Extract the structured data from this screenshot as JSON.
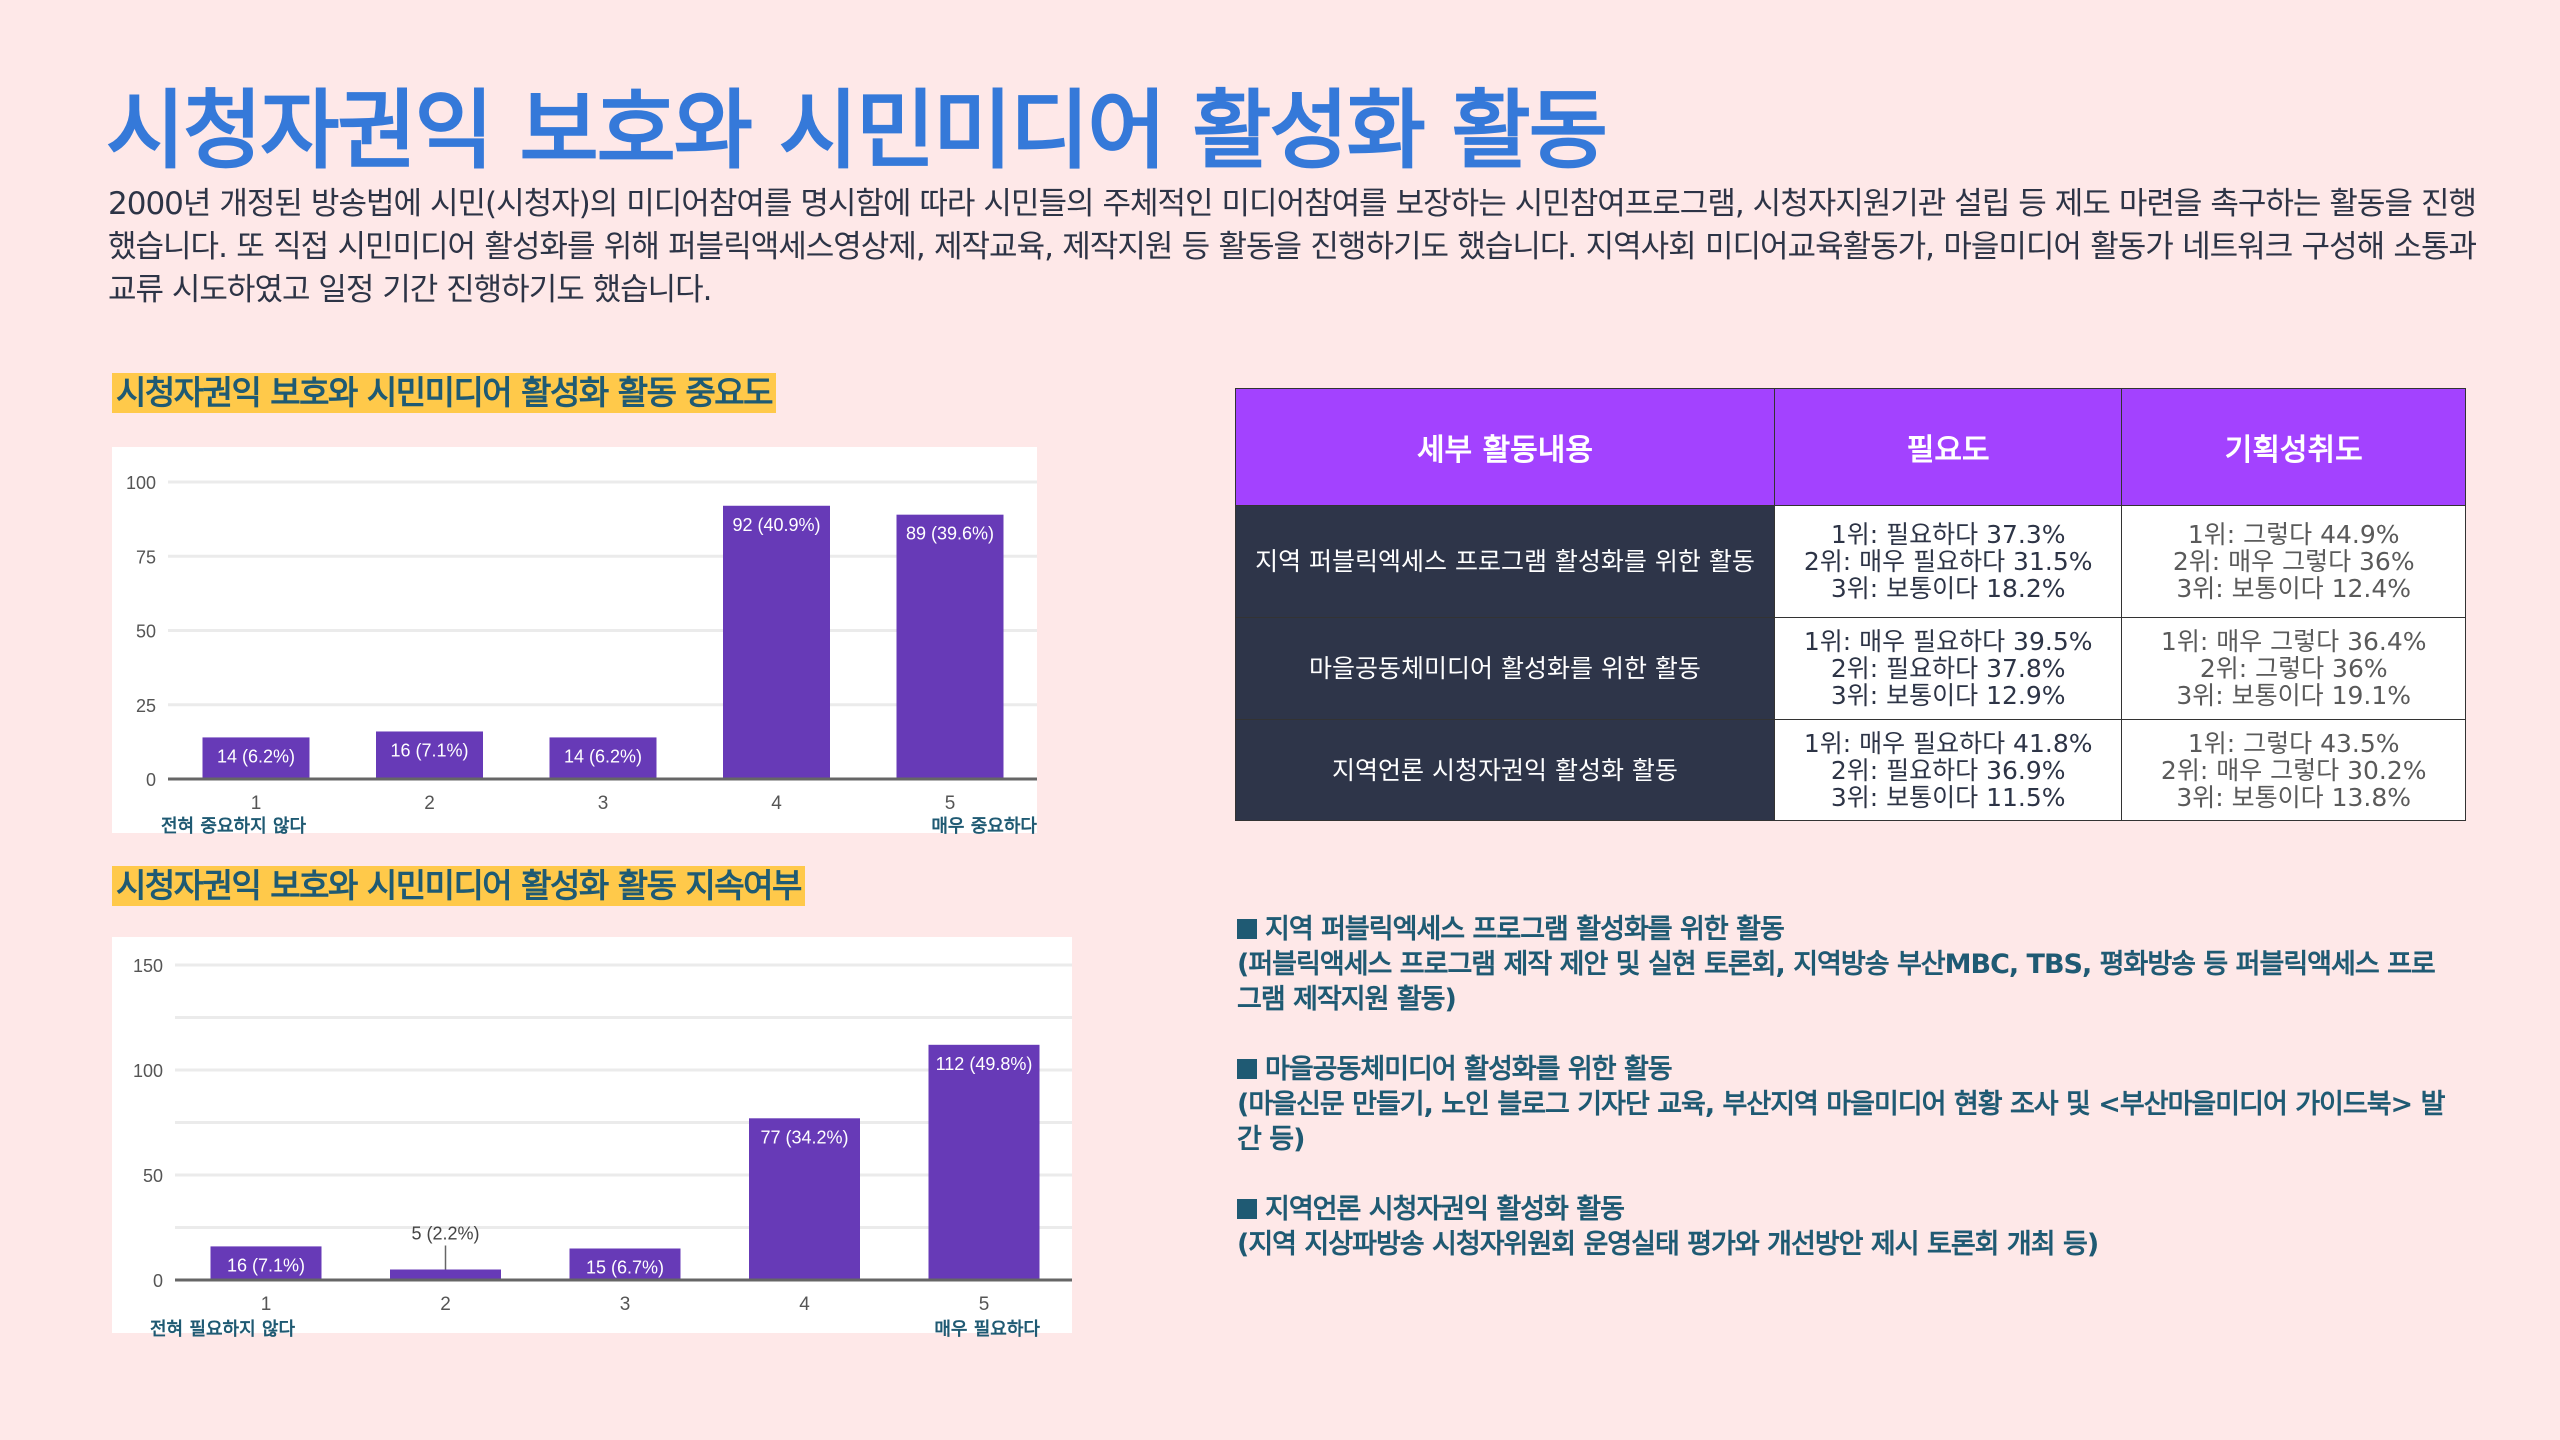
{
  "page": {
    "title": "시청자권익 보호와 시민미디어 활성화 활동",
    "intro": "2000년 개정된 방송법에 시민(시청자)의 미디어참여를 명시함에 따라 시민들의 주체적인 미디어참여를 보장하는 시민참여프로그램, 시청자지원기관 설립 등 제도 마련을 촉구하는 활동을 진행했습니다. 또 직접 시민미디어 활성화를 위해 퍼블릭액세스영상제, 제작교육, 제작지원 등 활동을 진행하기도 했습니다. 지역사회 미디어교육활동가, 마을미디어 활동가 네트워크 구성해 소통과 교류 시도하였고 일정 기간 진행하기도 했습니다."
  },
  "colors": {
    "bar": "#673ab7",
    "title": "#3579d9",
    "header": "#a342ff",
    "dark": "#2e3549",
    "highlight": "#ffc94a"
  },
  "chart_data": [
    {
      "type": "bar",
      "title": "시청자권익 보호와 시민미디어 활성화 활동 중요도",
      "categories": [
        "1",
        "2",
        "3",
        "4",
        "5"
      ],
      "values": [
        14,
        16,
        14,
        92,
        89
      ],
      "data_labels": [
        "14 (6.2%)",
        "16 (7.1%)",
        "14 (6.2%)",
        "92 (40.9%)",
        "89 (39.6%)"
      ],
      "ylim": [
        0,
        100
      ],
      "yticks": [
        0,
        25,
        50,
        75,
        100
      ],
      "grid": true,
      "low_label": "전혀 중요하지 않다",
      "high_label": "매우 중요하다"
    },
    {
      "type": "bar",
      "title": "시청자권익 보호와 시민미디어 활성화 활동 지속여부",
      "categories": [
        "1",
        "2",
        "3",
        "4",
        "5"
      ],
      "values": [
        16,
        5,
        15,
        77,
        112
      ],
      "data_labels": [
        "16 (7.1%)",
        "5 (2.2%)",
        "15 (6.7%)",
        "77 (34.2%)",
        "112 (49.8%)"
      ],
      "ylim": [
        0,
        150
      ],
      "yticks": [
        0,
        50,
        100,
        150
      ],
      "grid": true,
      "low_label": "전혀 필요하지  않다",
      "high_label": "매우 필요하다"
    }
  ],
  "table": {
    "headers": [
      "세부 활동내용",
      "필요도",
      "기획성취도"
    ],
    "rows": [
      {
        "name": "지역 퍼블릭엑세스 프로그램 활성화를 위한 활동",
        "need": [
          "1위: 필요하다 37.3%",
          "2위: 매우 필요하다 31.5%",
          "3위: 보통이다 18.2%"
        ],
        "ach": [
          "1위: 그렇다 44.9%",
          "2위: 매우 그렇다 36%",
          "3위: 보통이다 12.4%"
        ]
      },
      {
        "name": "마을공동체미디어 활성화를 위한 활동",
        "need": [
          "1위: 매우 필요하다 39.5%",
          "2위: 필요하다 37.8%",
          "3위: 보통이다 12.9%"
        ],
        "ach": [
          "1위: 매우 그렇다 36.4%",
          "2위: 그렇다 36%",
          "3위: 보통이다 19.1%"
        ]
      },
      {
        "name": "지역언론 시청자권익 활성화 활동",
        "need": [
          "1위: 매우 필요하다 41.8%",
          "2위: 필요하다 36.9%",
          "3위: 보통이다 11.5%"
        ],
        "ach": [
          "1위: 그렇다 43.5%",
          "2위: 매우 그렇다 30.2%",
          "3위: 보통이다 13.8%"
        ]
      }
    ]
  },
  "bullets": [
    {
      "heading": "지역 퍼블릭엑세스 프로그램 활성화를 위한 활동",
      "detail": "(퍼블릭액세스 프로그램 제작 제안 및 실현 토론회, 지역방송 부산MBC, TBS, 평화방송 등 퍼블릭액세스 프로그램 제작지원 활동)"
    },
    {
      "heading": "마을공동체미디어 활성화를 위한 활동",
      "detail": "(마을신문 만들기, 노인 블로그 기자단 교육, 부산지역 마을미디어 현황 조사 및 <부산마을미디어 가이드북> 발간 등)"
    },
    {
      "heading": "지역언론 시청자권익 활성화 활동",
      "detail": "(지역 지상파방송 시청자위원회 운영실태 평가와 개선방안 제시 토론회 개최 등)"
    }
  ]
}
